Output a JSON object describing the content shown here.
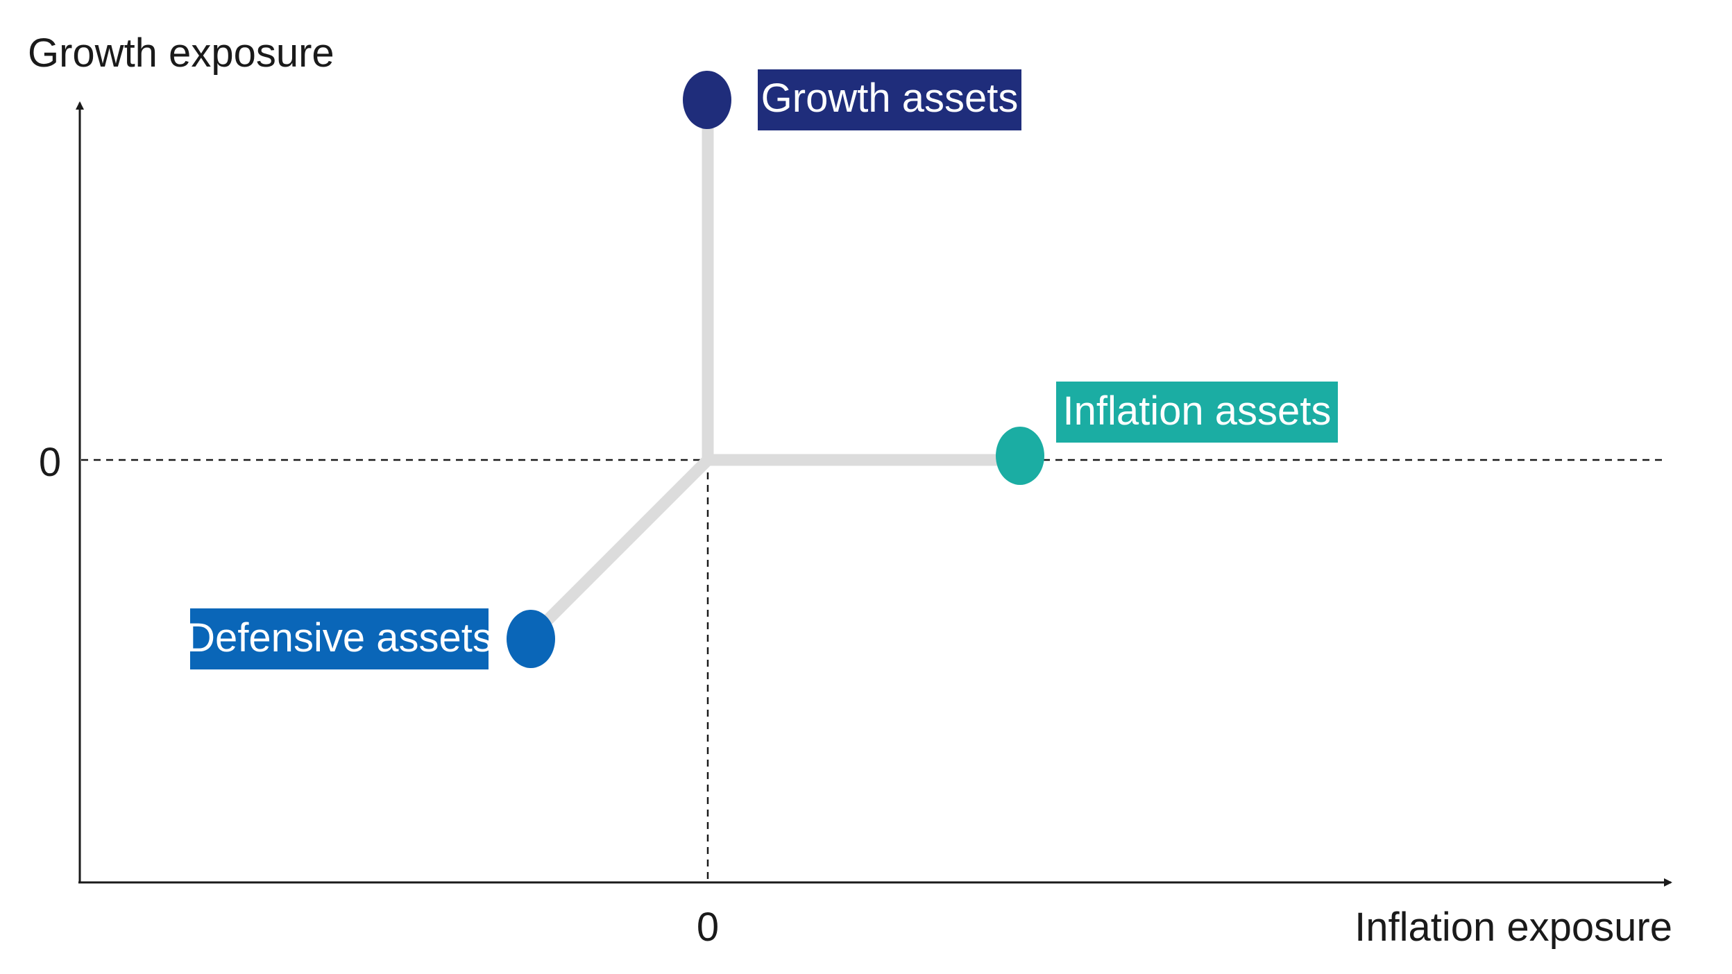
{
  "axes": {
    "y_label": "Growth exposure",
    "x_label": "Inflation exposure",
    "y_zero": "0",
    "x_zero": "0"
  },
  "nodes": {
    "growth": {
      "label": "Growth assets",
      "color": "#1f2d7b"
    },
    "inflation": {
      "label": "Inflation assets",
      "color": "#1bada3"
    },
    "defensive": {
      "label": "Defensive assets",
      "color": "#0a66b8"
    }
  },
  "colors": {
    "connector": "#dcdcdc",
    "axis": "#1a1a1a"
  }
}
